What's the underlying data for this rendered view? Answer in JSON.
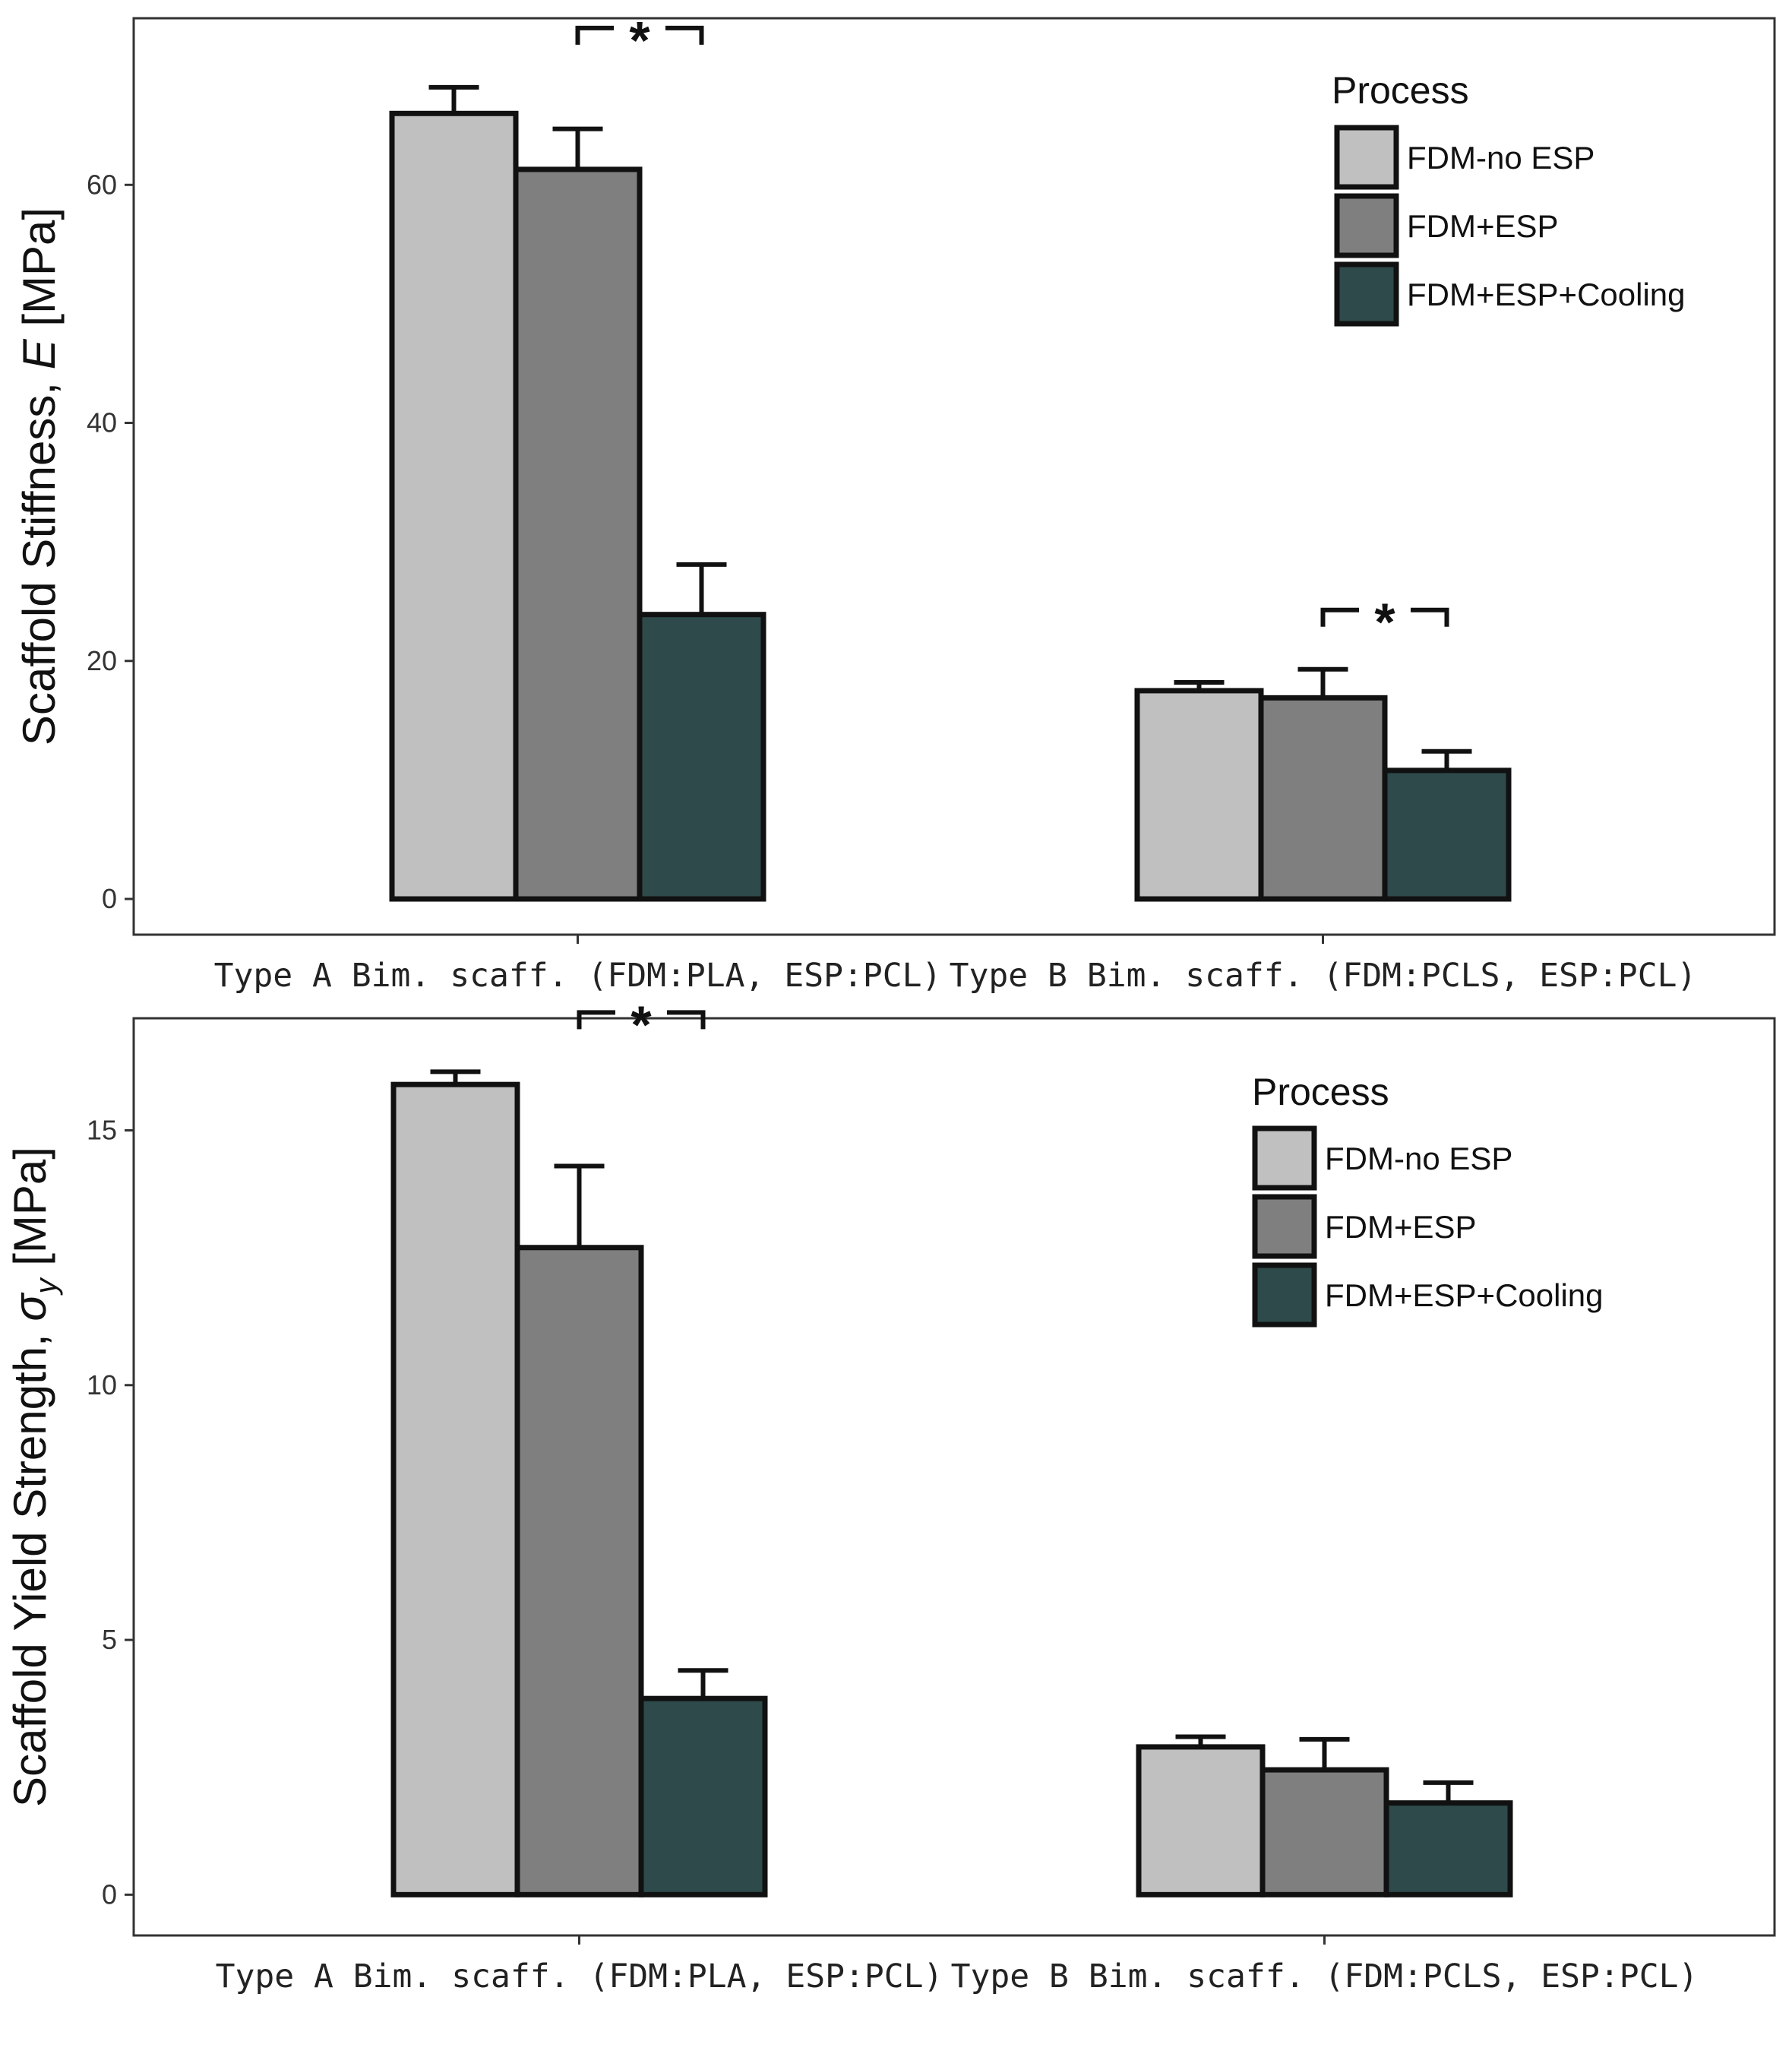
{
  "chart_data": [
    {
      "type": "bar",
      "title": "",
      "xlabel": "",
      "ylabel": "Scaffold Stiffness, E [MPa]",
      "ylabel_prefix": "Scaffold Stiffness, ",
      "ylabel_symbol": "E",
      "ylabel_suffix": " [MPa]",
      "ylim": [
        -3,
        74
      ],
      "yticks": [
        0,
        20,
        40,
        60
      ],
      "grid": false,
      "categories": [
        "Type A Bim. scaff. (FDM:PLA, ESP:PCL)",
        "Type B Bim. scaff. (FDM:PCLS, ESP:PCL)"
      ],
      "series": [
        {
          "name": "FDM-no ESP",
          "values": [
            66.0,
            17.5
          ],
          "errors": [
            2.2,
            0.7
          ]
        },
        {
          "name": "FDM+ESP",
          "values": [
            61.3,
            16.9
          ],
          "errors": [
            3.4,
            2.4
          ]
        },
        {
          "name": "FDM+ESP+Cooling",
          "values": [
            23.9,
            10.8
          ],
          "errors": [
            4.2,
            1.6
          ]
        }
      ],
      "significance": [
        {
          "category": 0,
          "between": [
            1,
            2
          ],
          "label": "*"
        },
        {
          "category": 1,
          "between": [
            1,
            2
          ],
          "label": "*"
        }
      ],
      "legend_title": "Process",
      "legend_position": "top-right"
    },
    {
      "type": "bar",
      "title": "",
      "xlabel": "",
      "ylabel": "Scaffold Yield Strength, σy [MPa]",
      "ylabel_prefix": "Scaffold Yield Strength, ",
      "ylabel_symbol": "σ",
      "ylabel_subscript": "y",
      "ylabel_suffix": " [MPa]",
      "ylim": [
        -0.8,
        17.2
      ],
      "yticks": [
        0,
        5,
        10,
        15
      ],
      "grid": false,
      "categories": [
        "Type A Bim. scaff. (FDM:PLA, ESP:PCL)",
        "Type B Bim. scaff. (FDM:PCLS, ESP:PCL)"
      ],
      "series": [
        {
          "name": "FDM-no ESP",
          "values": [
            15.9,
            2.9
          ],
          "errors": [
            0.25,
            0.2
          ]
        },
        {
          "name": "FDM+ESP",
          "values": [
            12.7,
            2.45
          ],
          "errors": [
            1.6,
            0.6
          ]
        },
        {
          "name": "FDM+ESP+Cooling",
          "values": [
            3.85,
            1.8
          ],
          "errors": [
            0.55,
            0.4
          ]
        }
      ],
      "significance": [
        {
          "category": 0,
          "between": [
            1,
            2
          ],
          "label": "*"
        }
      ],
      "legend_title": "Process",
      "legend_position": "top-right"
    }
  ],
  "colors": {
    "FDM-no ESP": "#c0c0c0",
    "FDM+ESP": "#7f7f7f",
    "FDM+ESP+Cooling": "#2e4a4a",
    "outline": "#111111"
  }
}
